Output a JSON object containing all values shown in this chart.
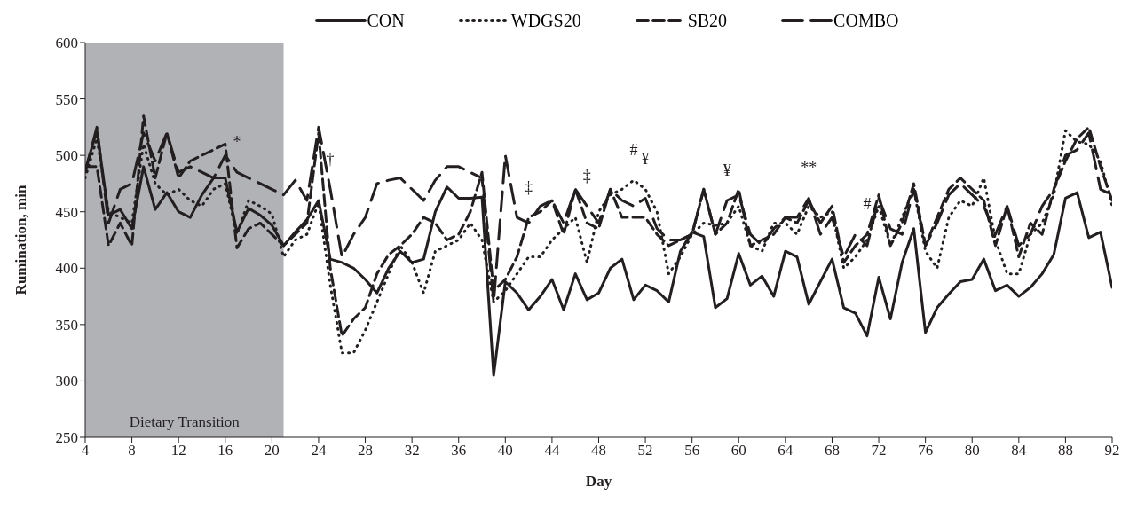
{
  "chart_data": {
    "type": "line",
    "xlabel": "Day",
    "ylabel": "Rumination, min",
    "x": [
      4,
      5,
      6,
      7,
      8,
      9,
      10,
      11,
      12,
      13,
      14,
      15,
      16,
      17,
      18,
      19,
      20,
      21,
      22,
      23,
      24,
      25,
      26,
      27,
      28,
      29,
      30,
      31,
      32,
      33,
      34,
      35,
      36,
      37,
      38,
      39,
      40,
      41,
      42,
      43,
      44,
      45,
      46,
      47,
      48,
      49,
      50,
      51,
      52,
      53,
      54,
      55,
      56,
      57,
      58,
      59,
      60,
      61,
      62,
      63,
      64,
      65,
      66,
      67,
      68,
      69,
      70,
      71,
      72,
      73,
      74,
      75,
      76,
      77,
      78,
      79,
      80,
      81,
      82,
      83,
      84,
      85,
      86,
      87,
      88,
      89,
      90,
      91,
      92
    ],
    "series": [
      {
        "name": "CON",
        "color": "#231f20",
        "line_style": "solid",
        "values": [
          487,
          522,
          447,
          452,
          435,
          490,
          452,
          467,
          450,
          445,
          465,
          480,
          480,
          432,
          453,
          447,
          438,
          420,
          432,
          443,
          460,
          408,
          405,
          400,
          390,
          378,
          400,
          415,
          405,
          408,
          450,
          472,
          462,
          462,
          463,
          305,
          388,
          378,
          363,
          375,
          390,
          363,
          395,
          372,
          378,
          400,
          408,
          372,
          385,
          380,
          370,
          415,
          432,
          428,
          365,
          373,
          413,
          385,
          393,
          375,
          415,
          410,
          368,
          388,
          408,
          365,
          360,
          340,
          392,
          355,
          405,
          435,
          343,
          365,
          377,
          388,
          390,
          408,
          380,
          385,
          375,
          383,
          395,
          412,
          462,
          467,
          427,
          432,
          383
        ]
      },
      {
        "name": "WDGS20",
        "color": "#231f20",
        "line_style": "dotted",
        "values": [
          480,
          515,
          450,
          445,
          440,
          510,
          475,
          465,
          470,
          460,
          455,
          470,
          475,
          430,
          460,
          455,
          448,
          410,
          425,
          430,
          458,
          385,
          325,
          325,
          345,
          370,
          395,
          420,
          405,
          378,
          415,
          420,
          425,
          440,
          425,
          370,
          380,
          395,
          410,
          410,
          425,
          435,
          445,
          405,
          450,
          465,
          470,
          478,
          470,
          450,
          395,
          410,
          430,
          440,
          438,
          440,
          455,
          420,
          415,
          440,
          440,
          430,
          455,
          445,
          450,
          400,
          410,
          425,
          455,
          420,
          445,
          470,
          415,
          400,
          445,
          460,
          455,
          480,
          425,
          395,
          395,
          430,
          440,
          465,
          522,
          512,
          510,
          495,
          455
        ]
      },
      {
        "name": "SB20",
        "color": "#231f20",
        "line_style": "dashed",
        "values": [
          490,
          490,
          420,
          440,
          420,
          535,
          480,
          520,
          480,
          495,
          500,
          505,
          510,
          418,
          435,
          440,
          430,
          420,
          430,
          440,
          520,
          400,
          340,
          355,
          365,
          395,
          412,
          420,
          430,
          445,
          440,
          425,
          430,
          450,
          485,
          380,
          390,
          410,
          445,
          450,
          460,
          430,
          470,
          440,
          435,
          470,
          445,
          445,
          445,
          430,
          420,
          425,
          430,
          470,
          430,
          440,
          470,
          420,
          425,
          430,
          445,
          440,
          460,
          440,
          455,
          405,
          420,
          430,
          465,
          420,
          440,
          475,
          420,
          445,
          470,
          480,
          470,
          460,
          420,
          455,
          410,
          440,
          430,
          470,
          495,
          515,
          525,
          490,
          460
        ]
      },
      {
        "name": "COMBO",
        "color": "#231f20",
        "line_style": "dashed",
        "values": [
          485,
          525,
          440,
          470,
          475,
          520,
          495,
          520,
          485,
          490,
          485,
          480,
          500,
          485,
          480,
          475,
          470,
          465,
          478,
          460,
          525,
          470,
          410,
          430,
          445,
          475,
          478,
          480,
          470,
          460,
          478,
          490,
          490,
          485,
          480,
          370,
          500,
          445,
          440,
          455,
          460,
          440,
          470,
          455,
          440,
          470,
          460,
          455,
          462,
          435,
          425,
          425,
          430,
          470,
          430,
          460,
          465,
          430,
          420,
          435,
          445,
          445,
          462,
          430,
          445,
          410,
          430,
          420,
          462,
          435,
          430,
          470,
          420,
          440,
          465,
          475,
          465,
          455,
          430,
          455,
          420,
          430,
          455,
          470,
          500,
          505,
          520,
          470,
          465
        ]
      }
    ],
    "xlim": [
      4,
      92
    ],
    "xticks": [
      4,
      8,
      12,
      16,
      20,
      24,
      28,
      32,
      36,
      40,
      44,
      48,
      52,
      56,
      60,
      64,
      68,
      72,
      76,
      80,
      84,
      88,
      92
    ],
    "ylim": [
      250,
      600
    ],
    "yticks": [
      250,
      300,
      350,
      400,
      450,
      500,
      550,
      600
    ],
    "grid": false,
    "legend": "top",
    "bands": [
      {
        "axis": "x",
        "from": 4,
        "to": 21,
        "label": "Dietary Transition",
        "color": "#b1b2b6"
      }
    ],
    "annotations": [
      {
        "text": "*",
        "x": 17,
        "y": 485
      },
      {
        "text": "†",
        "x": 25,
        "y": 470
      },
      {
        "text": "‡",
        "x": 42,
        "y": 445
      },
      {
        "text": "‡",
        "x": 47,
        "y": 455
      },
      {
        "text": "#",
        "x": 51,
        "y": 478
      },
      {
        "text": "¥",
        "x": 52,
        "y": 470
      },
      {
        "text": "¥",
        "x": 59,
        "y": 460
      },
      {
        "text": "**",
        "x": 66,
        "y": 462
      },
      {
        "text": "#",
        "x": 71,
        "y": 430
      }
    ]
  }
}
